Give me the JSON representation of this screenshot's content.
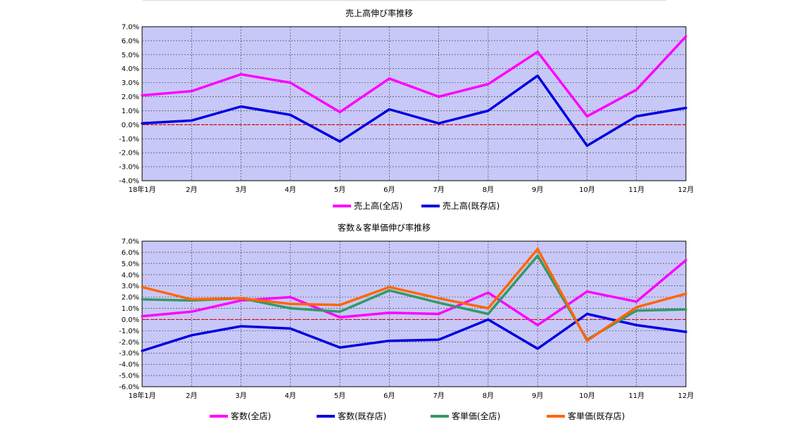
{
  "chart_data": [
    {
      "type": "line",
      "title": "売上高伸び率推移",
      "xlabel": "",
      "ylabel": "",
      "categories": [
        "18年1月",
        "2月",
        "3月",
        "4月",
        "5月",
        "6月",
        "7月",
        "8月",
        "9月",
        "10月",
        "11月",
        "12月"
      ],
      "ylim": [
        -4.0,
        7.0
      ],
      "ytick_step": 1.0,
      "y_tick_labels": [
        "7.0%",
        "6.0%",
        "5.0%",
        "4.0%",
        "3.0%",
        "2.0%",
        "1.0%",
        "0.0%",
        "-1.0%",
        "-2.0%",
        "-3.0%",
        "-4.0%"
      ],
      "grid": true,
      "plot_bg": "#c8c8f8",
      "zero_line_color": "#e00000",
      "legend_position": "bottom",
      "series": [
        {
          "name": "売上高(全店)",
          "color": "#ff00ff",
          "values": [
            2.1,
            2.4,
            3.6,
            3.0,
            0.9,
            3.3,
            2.0,
            2.9,
            5.2,
            0.6,
            2.5,
            6.3
          ]
        },
        {
          "name": "売上高(既存店)",
          "color": "#0000e0",
          "values": [
            0.1,
            0.3,
            1.3,
            0.7,
            -1.2,
            1.1,
            0.1,
            1.0,
            3.5,
            -1.5,
            0.6,
            1.2
          ]
        }
      ]
    },
    {
      "type": "line",
      "title": "客数＆客単価伸び率推移",
      "xlabel": "",
      "ylabel": "",
      "categories": [
        "18年1月",
        "2月",
        "3月",
        "4月",
        "5月",
        "6月",
        "7月",
        "8月",
        "9月",
        "10月",
        "11月",
        "12月"
      ],
      "ylim": [
        -6.0,
        7.0
      ],
      "ytick_step": 1.0,
      "y_tick_labels": [
        "7.0%",
        "6.0%",
        "5.0%",
        "4.0%",
        "3.0%",
        "2.0%",
        "1.0%",
        "0.0%",
        "-1.0%",
        "-2.0%",
        "-3.0%",
        "-4.0%",
        "-5.0%",
        "-6.0%"
      ],
      "grid": true,
      "plot_bg": "#c8c8f8",
      "zero_line_color": "#e00000",
      "legend_position": "bottom",
      "series": [
        {
          "name": "客数(全店)",
          "color": "#ff00ff",
          "values": [
            0.3,
            0.7,
            1.7,
            2.0,
            0.2,
            0.6,
            0.5,
            2.4,
            -0.5,
            2.5,
            1.6,
            5.3
          ]
        },
        {
          "name": "客数(既存店)",
          "color": "#0000e0",
          "values": [
            -2.8,
            -1.4,
            -0.6,
            -0.8,
            -2.5,
            -1.9,
            -1.8,
            0.0,
            -2.6,
            0.5,
            -0.5,
            -1.1
          ]
        },
        {
          "name": "客単価(全店)",
          "color": "#339966",
          "values": [
            1.8,
            1.7,
            1.9,
            1.0,
            0.7,
            2.6,
            1.5,
            0.5,
            5.7,
            -1.8,
            0.8,
            0.9
          ]
        },
        {
          "name": "客単価(既存店)",
          "color": "#ff6600",
          "values": [
            2.9,
            1.8,
            1.9,
            1.4,
            1.3,
            2.9,
            1.9,
            1.0,
            6.3,
            -1.9,
            1.1,
            2.3
          ]
        }
      ]
    }
  ]
}
